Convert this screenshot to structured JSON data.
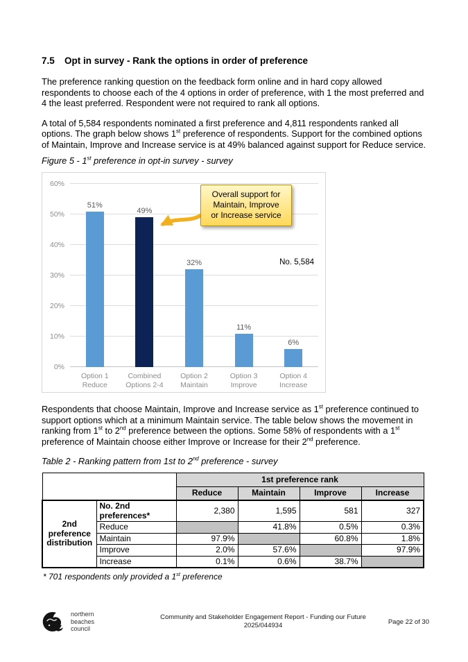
{
  "page": {
    "heading": {
      "number": "7.5",
      "title": "Opt in survey - Rank the options in order of preference"
    },
    "paragraphs": {
      "p1": "The preference ranking question on the feedback form online and in hard copy allowed respondents to choose each of the 4 options in order of preference, with 1 the most preferred and 4 the least preferred. Respondent were not required to rank all options.",
      "p2_segments": [
        "A total of 5,584 respondents nominated a first preference and 4,811 respondents ranked all options. The graph below shows 1",
        {
          "sup": "st"
        },
        " preference of respondents. Support for the combined options of Maintain, Improve and Increase service is at 49% balanced against support for Reduce service."
      ],
      "p3_segments": [
        "Respondents that choose Maintain, Improve and Increase service as 1",
        {
          "sup": "st"
        },
        " preference continued to support options which at a minimum Maintain service. The table below shows the movement in ranking from 1",
        {
          "sup": "st"
        },
        " to 2",
        {
          "sup": "nd"
        },
        " preference between the options. Some 58% of respondents with a 1",
        {
          "sup": "st"
        },
        " preference of Maintain choose either Improve or Increase for their 2",
        {
          "sup": "nd"
        },
        " preference."
      ]
    },
    "figure_caption_segments": [
      "Figure 5 - 1",
      {
        "sup": "st"
      },
      " preference in opt-in survey - survey"
    ],
    "table_caption_segments": [
      "Table 2 - Ranking pattern from 1st to 2",
      {
        "sup": "nd"
      },
      " preference - survey"
    ]
  },
  "chart_data": {
    "type": "bar",
    "title": "",
    "categories": [
      [
        "Option 1",
        "Reduce"
      ],
      [
        "Combined",
        "Options 2-4"
      ],
      [
        "Option 2",
        "Maintain"
      ],
      [
        "Option 3",
        "Improve"
      ],
      [
        "Option 4",
        "Increase"
      ]
    ],
    "values": [
      51,
      49,
      32,
      11,
      6
    ],
    "value_labels": [
      "51%",
      "49%",
      "32%",
      "11%",
      "6%"
    ],
    "bar_colors": [
      "#5b9bd5",
      "#0e2355",
      "#5b9bd5",
      "#5b9bd5",
      "#5b9bd5"
    ],
    "ylim": [
      0,
      60
    ],
    "ytick_step": 10,
    "ytick_labels": [
      "0%",
      "10%",
      "20%",
      "30%",
      "40%",
      "50%",
      "60%"
    ],
    "grid": true,
    "legend": null,
    "annotation": "No. 5,584",
    "callout": {
      "lines": [
        "Overall support for",
        "Maintain, Improve",
        "or Increase service"
      ],
      "fill": "#ffd95a",
      "border": "#bf9000",
      "arrow_color": "#f2b01e"
    }
  },
  "table": {
    "col_group_header": "1st preference rank",
    "col_headers": [
      "Reduce",
      "Maintain",
      "Improve",
      "Increase"
    ],
    "row_group_lines": [
      "2nd",
      "preference",
      "distribution"
    ],
    "rows": [
      {
        "label": "No. 2nd preferences*",
        "bold": true,
        "values": [
          "2,380",
          "1,595",
          "581",
          "327"
        ]
      },
      {
        "label": "Reduce",
        "bold": false,
        "values": [
          null,
          "41.8%",
          "0.5%",
          "0.3%"
        ]
      },
      {
        "label": "Maintain",
        "bold": false,
        "values": [
          "97.9%",
          null,
          "60.8%",
          "1.8%"
        ]
      },
      {
        "label": "Improve",
        "bold": false,
        "values": [
          "2.0%",
          "57.6%",
          null,
          "97.9%"
        ]
      },
      {
        "label": "Increase",
        "bold": false,
        "values": [
          "0.1%",
          "0.6%",
          "38.7%",
          null
        ]
      }
    ],
    "blank_cell_color": "#c2c2c2",
    "header_fill_color": "#d6d6d6",
    "footnote_segments": [
      "* 701 respondents only provided a 1",
      {
        "sup": "st"
      },
      " preference"
    ]
  },
  "footer": {
    "council_lines": [
      "northern",
      "beaches",
      "council"
    ],
    "doc_title": "Community and Stakeholder Engagement Report - Funding our Future",
    "doc_ref": "2025/044934",
    "page": "Page 22 of 30"
  }
}
